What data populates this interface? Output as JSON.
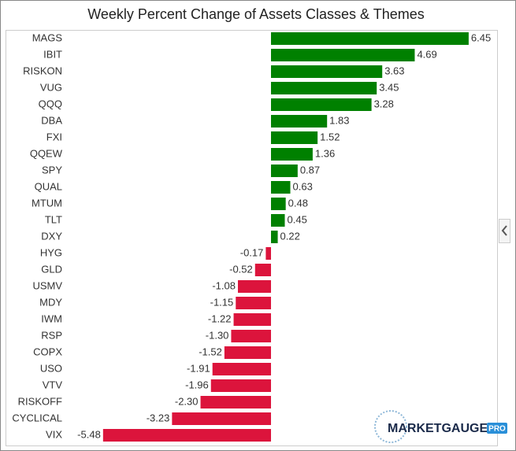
{
  "chart_data": {
    "type": "bar",
    "orientation": "horizontal",
    "title": "Weekly Percent Change of Assets Classes & Themes",
    "categories": [
      "MAGS",
      "IBIT",
      "RISKON",
      "VUG",
      "QQQ",
      "DBA",
      "FXI",
      "QQEW",
      "SPY",
      "QUAL",
      "MTUM",
      "TLT",
      "DXY",
      "HYG",
      "GLD",
      "USMV",
      "MDY",
      "IWM",
      "RSP",
      "COPX",
      "USO",
      "VTV",
      "RISKOFF",
      "CYCLICAL",
      "VIX"
    ],
    "values": [
      6.45,
      4.69,
      3.63,
      3.45,
      3.28,
      1.83,
      1.52,
      1.36,
      0.87,
      0.63,
      0.48,
      0.45,
      0.22,
      -0.17,
      -0.52,
      -1.08,
      -1.15,
      -1.22,
      -1.3,
      -1.52,
      -1.91,
      -1.96,
      -2.3,
      -3.23,
      -5.48
    ],
    "value_labels": [
      "6.45",
      "4.69",
      "3.63",
      "3.45",
      "3.28",
      "1.83",
      "1.52",
      "1.36",
      "0.87",
      "0.63",
      "0.48",
      "0.45",
      "0.22",
      "-0.17",
      "-0.52",
      "-1.08",
      "-1.15",
      "-1.22",
      "-1.30",
      "-1.52",
      "-1.91",
      "-1.96",
      "-2.30",
      "-3.23",
      "-5.48"
    ],
    "positive_color": "#008000",
    "negative_color": "#dc143c"
  },
  "logo": {
    "name": "MARKETGAUGE",
    "badge": "PRO"
  }
}
